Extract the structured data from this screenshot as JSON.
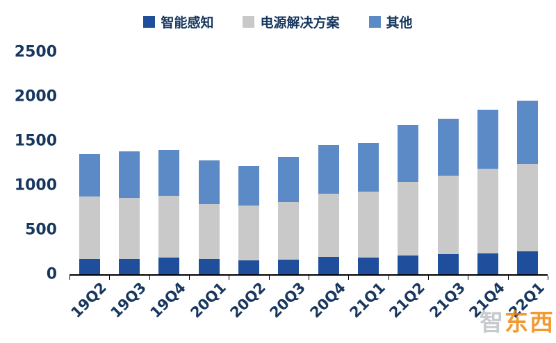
{
  "colors": {
    "series1": "#1f4e9c",
    "series2": "#c9c9c9",
    "series3": "#5b8ac6",
    "axis_text": "#17375e",
    "axis_line": "#000000",
    "watermark_orange": "#ef8200",
    "watermark_gray": "#b9bcc2"
  },
  "watermark": {
    "text_left": "智",
    "text_right": "东西"
  },
  "chart_data": {
    "type": "bar",
    "subtype": "stacked",
    "title": "",
    "xlabel": "",
    "ylabel": "",
    "grid": false,
    "legend_position": "top-center",
    "ylim": [
      0,
      2500
    ],
    "ytick_step": 500,
    "yticks": [
      "0",
      "500",
      "1000",
      "1500",
      "2000",
      "2500"
    ],
    "categories": [
      "19Q2",
      "19Q3",
      "19Q4",
      "20Q1",
      "20Q2",
      "20Q3",
      "20Q4",
      "21Q1",
      "21Q2",
      "21Q3",
      "21Q4",
      "22Q1"
    ],
    "series": [
      {
        "name": "智能感知",
        "color": "#1f4e9c",
        "values": [
          175,
          170,
          185,
          170,
          155,
          165,
          195,
          185,
          210,
          225,
          235,
          255
        ]
      },
      {
        "name": "电源解决方案",
        "color": "#c9c9c9",
        "values": [
          700,
          690,
          695,
          620,
          620,
          645,
          715,
          745,
          830,
          885,
          950,
          985
        ]
      },
      {
        "name": "其他",
        "color": "#5b8ac6",
        "values": [
          475,
          520,
          520,
          490,
          445,
          510,
          540,
          550,
          640,
          640,
          665,
          710
        ]
      }
    ],
    "totals": [
      1350,
      1380,
      1400,
      1280,
      1220,
      1320,
      1450,
      1480,
      1680,
      1750,
      1850,
      1950
    ]
  }
}
